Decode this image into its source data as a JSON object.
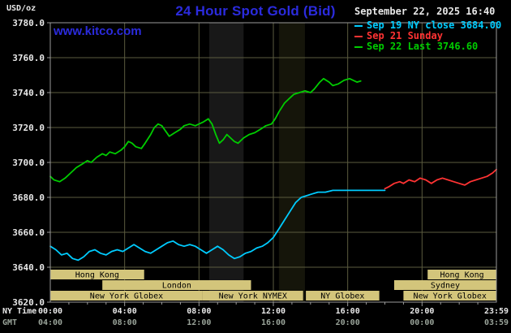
{
  "header": {
    "unit_label": "USD/oz",
    "title": "24 Hour Spot Gold (Bid)",
    "datetime": "September 22, 2025 16:40",
    "watermark": "www.kitco.com"
  },
  "legend": {
    "items": [
      {
        "label": "Sep 19 NY close 3684.00",
        "color": "#00ccff"
      },
      {
        "label": "Sep 21 Sunday",
        "color": "#ff3333"
      },
      {
        "label": "Sep 22 Last 3746.60",
        "color": "#00cc00"
      }
    ]
  },
  "colors": {
    "title": "#2b2bdd",
    "watermark": "#2b2bdd",
    "plot_bg": "#000000",
    "grid": "#5b5b3f",
    "border": "#9a9a9a",
    "axis_text": "#e8e8e8",
    "gmt_text": "#9aa49a",
    "session_fill": "#d3c57b",
    "session_text": "#000000"
  },
  "chart_data": {
    "type": "line",
    "title": "24 Hour Spot Gold (Bid)",
    "ylabel": "USD/oz",
    "xlabel": "NY Time",
    "grid": true,
    "legend_position": "top-right",
    "xlim": [
      0,
      24
    ],
    "ylim": [
      3620,
      3780
    ],
    "y_ticks": [
      3620,
      3640,
      3660,
      3680,
      3700,
      3720,
      3740,
      3760,
      3780
    ],
    "y_tick_labels": [
      "3620.0",
      "3640.0",
      "3660.0",
      "3680.0",
      "3700.0",
      "3720.0",
      "3740.0",
      "3760.0",
      "3780.0"
    ],
    "x_grid_hours": [
      4,
      8,
      12,
      16,
      20
    ],
    "x_axis_rows": [
      {
        "name": "NY Time",
        "positions": [
          0,
          4,
          8,
          12,
          16,
          20,
          24
        ],
        "labels": [
          "00:00",
          "04:00",
          "08:00",
          "12:00",
          "16:00",
          "20:00",
          "23:59"
        ]
      },
      {
        "name": "GMT",
        "positions": [
          0,
          4,
          8,
          12,
          16,
          20,
          24
        ],
        "labels": [
          "04:00",
          "08:00",
          "12:00",
          "16:00",
          "20:00",
          "00:00",
          "03:59"
        ]
      }
    ],
    "shaded_bands": [
      {
        "start": 8.55,
        "end": 10.4,
        "color": "#181818"
      },
      {
        "start": 12.3,
        "end": 13.7,
        "color": "#15150a"
      }
    ],
    "market_sessions": [
      [
        {
          "label": "Hong Kong",
          "start": 0,
          "end": 5.05
        },
        {
          "label": "Hong Kong",
          "start": 20.3,
          "end": 24
        }
      ],
      [
        {
          "label": "London",
          "start": 2.8,
          "end": 10.8
        },
        {
          "label": "Sydney",
          "start": 18.5,
          "end": 24
        }
      ],
      [
        {
          "label": "New York Globex",
          "start": 0,
          "end": 8.2
        },
        {
          "label": "New York NYMEX",
          "start": 8.2,
          "end": 13.6
        },
        {
          "label": "NY Globex",
          "start": 13.75,
          "end": 17.7
        },
        {
          "label": "New York Globex",
          "start": 19,
          "end": 24
        }
      ]
    ],
    "series": [
      {
        "name": "Sep 19 NY close",
        "color": "#00ccff",
        "close_value": 3684.0,
        "points": [
          [
            0,
            3652
          ],
          [
            0.3,
            3650
          ],
          [
            0.6,
            3647
          ],
          [
            0.9,
            3648
          ],
          [
            1.2,
            3645
          ],
          [
            1.5,
            3644
          ],
          [
            1.8,
            3646
          ],
          [
            2.1,
            3649
          ],
          [
            2.4,
            3650
          ],
          [
            2.7,
            3648
          ],
          [
            3,
            3647
          ],
          [
            3.3,
            3649
          ],
          [
            3.6,
            3650
          ],
          [
            3.9,
            3649
          ],
          [
            4.2,
            3651
          ],
          [
            4.5,
            3653
          ],
          [
            4.8,
            3651
          ],
          [
            5.1,
            3649
          ],
          [
            5.4,
            3648
          ],
          [
            5.7,
            3650
          ],
          [
            6,
            3652
          ],
          [
            6.3,
            3654
          ],
          [
            6.6,
            3655
          ],
          [
            6.9,
            3653
          ],
          [
            7.2,
            3652
          ],
          [
            7.5,
            3653
          ],
          [
            7.8,
            3652
          ],
          [
            8.1,
            3650
          ],
          [
            8.4,
            3648
          ],
          [
            8.7,
            3650
          ],
          [
            9,
            3652
          ],
          [
            9.3,
            3650
          ],
          [
            9.6,
            3647
          ],
          [
            9.9,
            3645
          ],
          [
            10.2,
            3646
          ],
          [
            10.5,
            3648
          ],
          [
            10.8,
            3649
          ],
          [
            11.1,
            3651
          ],
          [
            11.4,
            3652
          ],
          [
            11.7,
            3654
          ],
          [
            12,
            3657
          ],
          [
            12.3,
            3662
          ],
          [
            12.6,
            3667
          ],
          [
            12.9,
            3672
          ],
          [
            13.2,
            3677
          ],
          [
            13.5,
            3680
          ],
          [
            13.8,
            3681
          ],
          [
            14.1,
            3682
          ],
          [
            14.4,
            3683
          ],
          [
            14.8,
            3683
          ],
          [
            15.2,
            3684
          ],
          [
            16,
            3684
          ],
          [
            17,
            3684
          ],
          [
            18,
            3684
          ]
        ]
      },
      {
        "name": "Sep 21 Sunday",
        "color": "#ff3333",
        "points": [
          [
            18,
            3685
          ],
          [
            18.2,
            3686
          ],
          [
            18.5,
            3688
          ],
          [
            18.8,
            3689
          ],
          [
            19,
            3688
          ],
          [
            19.3,
            3690
          ],
          [
            19.6,
            3689
          ],
          [
            19.9,
            3691
          ],
          [
            20.2,
            3690
          ],
          [
            20.5,
            3688
          ],
          [
            20.8,
            3690
          ],
          [
            21.1,
            3691
          ],
          [
            21.4,
            3690
          ],
          [
            21.7,
            3689
          ],
          [
            22,
            3688
          ],
          [
            22.3,
            3687
          ],
          [
            22.6,
            3689
          ],
          [
            22.9,
            3690
          ],
          [
            23.2,
            3691
          ],
          [
            23.5,
            3692
          ],
          [
            23.8,
            3694
          ],
          [
            24,
            3696
          ]
        ]
      },
      {
        "name": "Sep 22",
        "color": "#00cc00",
        "last_value": 3746.6,
        "points": [
          [
            0,
            3692
          ],
          [
            0.2,
            3690
          ],
          [
            0.5,
            3689
          ],
          [
            0.8,
            3691
          ],
          [
            1.1,
            3694
          ],
          [
            1.4,
            3697
          ],
          [
            1.7,
            3699
          ],
          [
            2,
            3701
          ],
          [
            2.2,
            3700
          ],
          [
            2.5,
            3703
          ],
          [
            2.8,
            3705
          ],
          [
            3,
            3704
          ],
          [
            3.2,
            3706
          ],
          [
            3.5,
            3705
          ],
          [
            3.8,
            3707
          ],
          [
            4,
            3709
          ],
          [
            4.2,
            3712
          ],
          [
            4.4,
            3711
          ],
          [
            4.6,
            3709
          ],
          [
            4.9,
            3708
          ],
          [
            5.1,
            3711
          ],
          [
            5.4,
            3716
          ],
          [
            5.6,
            3720
          ],
          [
            5.8,
            3722
          ],
          [
            6,
            3721
          ],
          [
            6.2,
            3718
          ],
          [
            6.4,
            3715
          ],
          [
            6.7,
            3717
          ],
          [
            7,
            3719
          ],
          [
            7.2,
            3721
          ],
          [
            7.5,
            3722
          ],
          [
            7.8,
            3721
          ],
          [
            8,
            3722
          ],
          [
            8.2,
            3723
          ],
          [
            8.5,
            3725
          ],
          [
            8.7,
            3722
          ],
          [
            8.9,
            3716
          ],
          [
            9.1,
            3711
          ],
          [
            9.3,
            3713
          ],
          [
            9.5,
            3716
          ],
          [
            9.7,
            3714
          ],
          [
            9.9,
            3712
          ],
          [
            10.1,
            3711
          ],
          [
            10.4,
            3714
          ],
          [
            10.7,
            3716
          ],
          [
            11,
            3717
          ],
          [
            11.3,
            3719
          ],
          [
            11.6,
            3721
          ],
          [
            11.9,
            3722
          ],
          [
            12.1,
            3725
          ],
          [
            12.3,
            3729
          ],
          [
            12.6,
            3734
          ],
          [
            12.9,
            3737
          ],
          [
            13.1,
            3739
          ],
          [
            13.4,
            3740
          ],
          [
            13.7,
            3741
          ],
          [
            14,
            3740
          ],
          [
            14.2,
            3742
          ],
          [
            14.5,
            3746
          ],
          [
            14.7,
            3748
          ],
          [
            15,
            3746
          ],
          [
            15.2,
            3744
          ],
          [
            15.5,
            3745
          ],
          [
            15.8,
            3747
          ],
          [
            16.1,
            3748
          ],
          [
            16.3,
            3747
          ],
          [
            16.5,
            3746
          ],
          [
            16.7,
            3746.6
          ]
        ]
      }
    ]
  }
}
